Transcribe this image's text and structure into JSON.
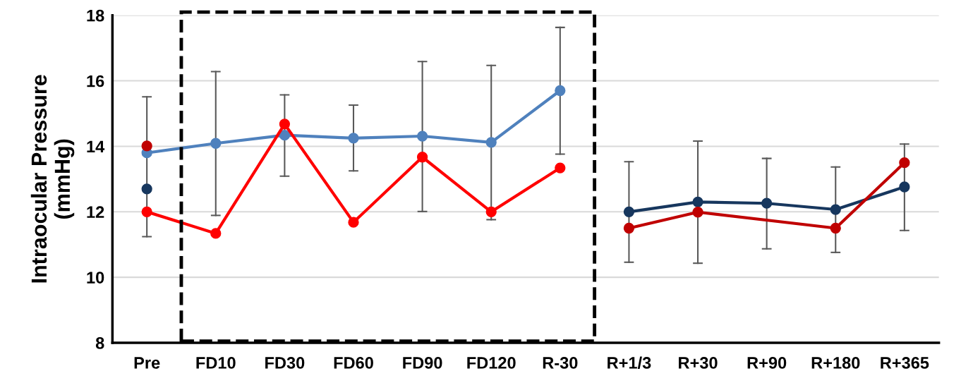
{
  "chart_data": {
    "type": "line",
    "ylabel": "Intraocular Pressure\n(mmHg)",
    "categories": [
      "Pre",
      "FD10",
      "FD30",
      "FD60",
      "FD90",
      "FD120",
      "R-30",
      "R+1/3",
      "R+30",
      "R+90",
      "R+180",
      "R+365"
    ],
    "ylim": [
      8,
      18
    ],
    "yticks": [
      8,
      10,
      12,
      14,
      16,
      18
    ],
    "grid": "y",
    "legend": false,
    "marker": "circle",
    "line_style": "solid",
    "series": [
      {
        "color": "#4f81bd",
        "values": [
          13.8,
          14.09,
          14.34,
          14.25,
          14.31,
          14.12,
          15.7,
          null,
          null,
          null,
          null,
          null
        ],
        "errors": [
          [
            11.24,
            15.51
          ],
          [
            11.89,
            16.28
          ],
          [
            13.09,
            15.57
          ],
          [
            13.25,
            15.26
          ],
          [
            12.01,
            16.59
          ],
          [
            11.76,
            16.47
          ],
          [
            13.76,
            17.63
          ],
          null,
          null,
          null,
          null,
          null
        ]
      },
      {
        "color": "#ff0000",
        "values": [
          12.0,
          11.34,
          14.68,
          11.68,
          13.67,
          12.0,
          13.34,
          null,
          null,
          null,
          null,
          null
        ]
      },
      {
        "color": "#17375e",
        "values": [
          null,
          null,
          null,
          null,
          null,
          null,
          null,
          12.0,
          12.3,
          12.26,
          12.07,
          12.76
        ],
        "errors": [
          null,
          null,
          null,
          null,
          null,
          null,
          null,
          [
            10.46,
            13.53
          ],
          [
            10.43,
            14.16
          ],
          [
            10.87,
            13.63
          ],
          [
            10.76,
            13.37
          ],
          [
            11.43,
            14.07
          ]
        ]
      },
      {
        "color": "#c00000",
        "values": [
          null,
          null,
          null,
          null,
          null,
          null,
          null,
          11.5,
          11.99,
          null,
          11.5,
          13.5
        ]
      },
      {
        "type": "scatter",
        "color": "#17375e",
        "values": [
          12.7,
          null,
          null,
          null,
          null,
          null,
          null,
          null,
          null,
          null,
          null,
          null
        ]
      },
      {
        "type": "scatter",
        "color": "#c00000",
        "values": [
          14.01,
          null,
          null,
          null,
          null,
          null,
          null,
          null,
          null,
          null,
          null,
          null
        ]
      }
    ]
  }
}
